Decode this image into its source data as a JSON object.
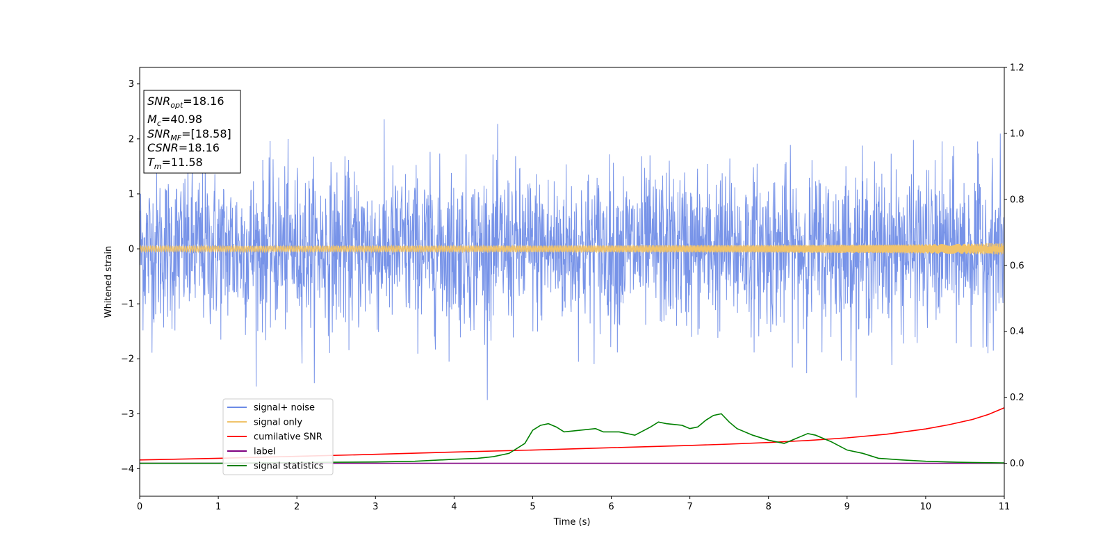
{
  "chart_data": {
    "type": "line",
    "title": "",
    "xlabel": "Time (s)",
    "ylabel": "Whitened strain",
    "y2label": "",
    "xlim": [
      0,
      11
    ],
    "ylim": [
      -4.5,
      3.3
    ],
    "y2lim": [
      -0.1,
      1.2
    ],
    "x_ticks": [
      0,
      1,
      2,
      3,
      4,
      5,
      6,
      7,
      8,
      9,
      10,
      11
    ],
    "y_ticks": [
      -4,
      -3,
      -2,
      -1,
      0,
      1,
      2,
      3
    ],
    "y2_ticks": [
      0.0,
      0.2,
      0.4,
      0.6,
      0.8,
      1.0,
      1.2
    ],
    "x_tick_labels": [
      "0",
      "1",
      "2",
      "3",
      "4",
      "5",
      "6",
      "7",
      "8",
      "9",
      "10",
      "11"
    ],
    "y_tick_labels": [
      "−4",
      "−3",
      "−2",
      "−1",
      "0",
      "1",
      "2",
      "3"
    ],
    "y2_tick_labels": [
      "0.0",
      "0.2",
      "0.4",
      "0.6",
      "0.8",
      "1.0",
      "1.2"
    ],
    "grid": false,
    "legend_position": "lower-left",
    "series": [
      {
        "name": "signal+ noise",
        "color": "#6b8ae6",
        "axis": "left",
        "style": "noise",
        "description_values": {
          "sigma": 0.72,
          "min": -2.75,
          "max": 2.58
        }
      },
      {
        "name": "signal only",
        "color": "#f0c36b",
        "axis": "left",
        "style": "chirp",
        "amplitude_end": 0.12,
        "x_range": [
          0,
          11
        ]
      },
      {
        "name": "cumilative SNR",
        "color": "#ff0000",
        "axis": "right",
        "x": [
          0,
          1,
          2,
          3,
          4,
          5,
          6,
          7,
          7.5,
          8,
          8.5,
          9,
          9.5,
          10,
          10.3,
          10.6,
          10.8,
          11
        ],
        "values": [
          0.01,
          0.015,
          0.021,
          0.027,
          0.034,
          0.04,
          0.047,
          0.054,
          0.058,
          0.063,
          0.069,
          0.077,
          0.088,
          0.104,
          0.117,
          0.133,
          0.148,
          0.168
        ]
      },
      {
        "name": "label",
        "color": "#800080",
        "axis": "right",
        "x": [
          0,
          11
        ],
        "values": [
          0.0,
          0.0
        ]
      },
      {
        "name": "signal statistics",
        "color": "#008000",
        "axis": "right",
        "x": [
          0,
          1,
          2,
          2.5,
          3,
          3.5,
          4,
          4.3,
          4.5,
          4.7,
          4.9,
          5.0,
          5.1,
          5.2,
          5.3,
          5.4,
          5.6,
          5.8,
          5.9,
          6.1,
          6.3,
          6.5,
          6.6,
          6.7,
          6.9,
          7.0,
          7.1,
          7.2,
          7.3,
          7.4,
          7.5,
          7.6,
          7.8,
          8.0,
          8.2,
          8.4,
          8.5,
          8.6,
          8.8,
          9.0,
          9.2,
          9.4,
          9.7,
          10.0,
          10.4,
          11.0
        ],
        "values": [
          0.0,
          0.0,
          0.002,
          0.003,
          0.004,
          0.006,
          0.012,
          0.015,
          0.02,
          0.03,
          0.06,
          0.1,
          0.115,
          0.12,
          0.11,
          0.095,
          0.1,
          0.105,
          0.095,
          0.095,
          0.085,
          0.11,
          0.125,
          0.12,
          0.115,
          0.105,
          0.11,
          0.13,
          0.145,
          0.15,
          0.125,
          0.105,
          0.085,
          0.07,
          0.06,
          0.08,
          0.09,
          0.085,
          0.065,
          0.04,
          0.03,
          0.015,
          0.01,
          0.006,
          0.003,
          0.001
        ]
      }
    ],
    "annotation": {
      "lines": [
        {
          "base": "SNR",
          "sub": "opt",
          "rest": "=18.16"
        },
        {
          "base": "M",
          "sub": "c",
          "rest": "=40.98"
        },
        {
          "base": "SNR",
          "sub": "MF",
          "rest": "=[18.58]"
        },
        {
          "base": "CSNR",
          "sub": "",
          "rest": "=18.16"
        },
        {
          "base": "T",
          "sub": "m",
          "rest": "=11.58"
        }
      ]
    }
  }
}
